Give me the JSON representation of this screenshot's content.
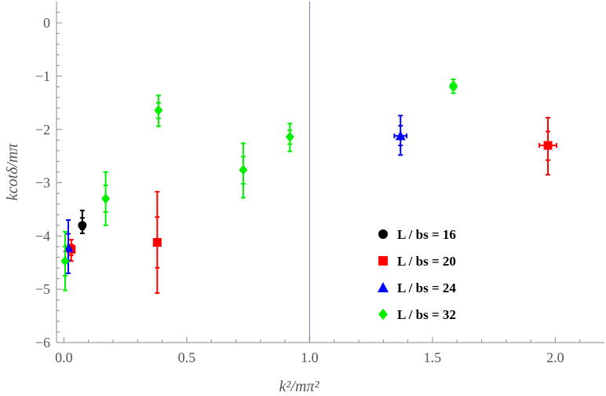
{
  "chart_data": {
    "type": "scatter",
    "xlabel": "k²/mπ²",
    "ylabel": "kcotδ/mπ",
    "xlim": [
      -0.03,
      2.2
    ],
    "ylim": [
      -6,
      0.4
    ],
    "x_ticks": [
      0.0,
      0.5,
      1.0,
      1.5,
      2.0
    ],
    "x_tick_labels": [
      "0.0",
      "0.5",
      "1.0",
      "1.5",
      "2.0"
    ],
    "y_ticks": [
      0,
      -1,
      -2,
      -3,
      -4,
      -5,
      -6
    ],
    "y_tick_labels": [
      "0",
      "−1",
      "−2",
      "−3",
      "−4",
      "−5",
      "−6"
    ],
    "vertical_line_x": 1.0,
    "grid": false,
    "legend_position": "lower-right inside plot",
    "series": [
      {
        "name": "L / bs = 16",
        "color": "#000000",
        "marker": "circle",
        "points": [
          {
            "x": 0.075,
            "y": -3.8,
            "y_err": [
              0.15,
              0.28
            ],
            "x_err": 0.0
          }
        ]
      },
      {
        "name": "L / bs = 20",
        "color": "#ff0000",
        "marker": "square",
        "points": [
          {
            "x": 0.03,
            "y": -4.25,
            "y_err": [
              0.22,
              0.18
            ],
            "x_err": 0.005
          },
          {
            "x": 0.38,
            "y": -4.12,
            "y_err": [
              0.95,
              0.95
            ],
            "x_err": 0.0
          },
          {
            "x": 1.97,
            "y": -2.3,
            "y_err": [
              0.55,
              0.52
            ],
            "x_err": 0.035
          }
        ]
      },
      {
        "name": "L / bs = 24",
        "color": "#0000ff",
        "marker": "triangle",
        "points": [
          {
            "x": 0.018,
            "y": -4.22,
            "y_err": [
              0.48,
              0.52
            ],
            "x_err": 0.005
          },
          {
            "x": 1.37,
            "y": -2.12,
            "y_err": [
              0.36,
              0.38
            ],
            "x_err": 0.025
          }
        ]
      },
      {
        "name": "L / bs = 32",
        "color": "#00ee00",
        "marker": "diamond",
        "points": [
          {
            "x": 0.005,
            "y": -4.47,
            "y_err": [
              0.55,
              0.55
            ],
            "x_err": 0.0
          },
          {
            "x": 0.17,
            "y": -3.3,
            "y_err": [
              0.5,
              0.5
            ],
            "x_err": 0.0
          },
          {
            "x": 0.385,
            "y": -1.64,
            "y_err": [
              0.3,
              0.28
            ],
            "x_err": 0.0
          },
          {
            "x": 0.73,
            "y": -2.76,
            "y_err": [
              0.52,
              0.5
            ],
            "x_err": 0.0
          },
          {
            "x": 0.92,
            "y": -2.14,
            "y_err": [
              0.27,
              0.25
            ],
            "x_err": 0.0
          },
          {
            "x": 1.585,
            "y": -1.19,
            "y_err": [
              0.13,
              0.13
            ],
            "x_err": 0.012
          }
        ]
      }
    ]
  }
}
